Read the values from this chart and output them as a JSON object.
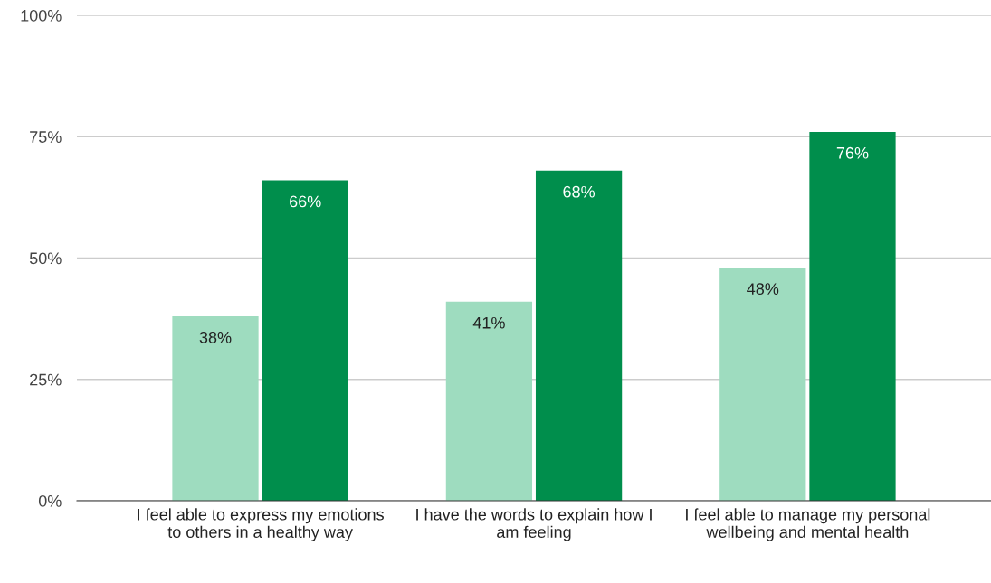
{
  "chart_data": {
    "type": "bar",
    "categories": [
      "I feel able to express my emotions to others in a healthy way",
      "I have the words to explain how I am feeling",
      "I feel able to manage my personal wellbeing and mental health"
    ],
    "series": [
      {
        "color": "#9edcbf",
        "values": [
          38,
          41,
          48
        ],
        "value_labels": [
          "38%",
          "41%",
          "48%"
        ]
      },
      {
        "color": "#008e4c",
        "values": [
          66,
          68,
          76
        ],
        "value_labels": [
          "66%",
          "68%",
          "76%"
        ]
      }
    ],
    "ylim": [
      0,
      100
    ],
    "yticks": [
      {
        "value": 0,
        "label": "0%"
      },
      {
        "value": 25,
        "label": "25%"
      },
      {
        "value": 50,
        "label": "50%"
      },
      {
        "value": 75,
        "label": "75%"
      },
      {
        "value": 100,
        "label": "100%"
      }
    ],
    "grid": "y",
    "legend": false
  }
}
